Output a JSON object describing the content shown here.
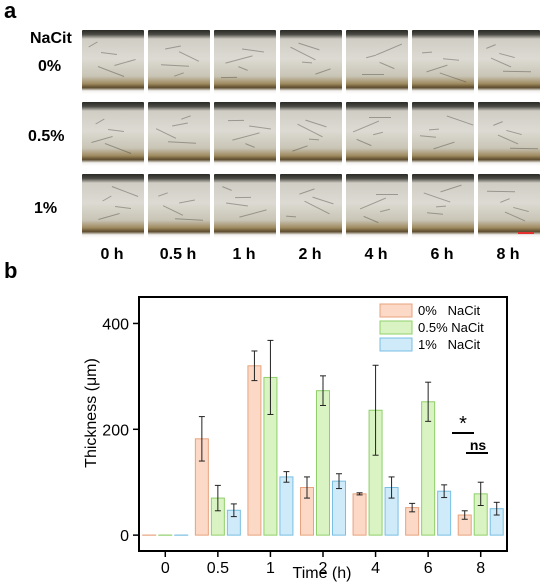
{
  "panels": {
    "a_letter": "a",
    "b_letter": "b"
  },
  "micrographs": {
    "header_label": "NaCit",
    "row_labels": [
      "0%",
      "0.5%",
      "1%"
    ],
    "col_labels": [
      "0 h",
      "0.5 h",
      "1 h",
      "2 h",
      "4 h",
      "6 h",
      "8 h"
    ],
    "scale_bar_color": "#e53030"
  },
  "chart_data": {
    "type": "bar",
    "xlabel": "Time (h)",
    "ylabel": "Thickness (μm)",
    "categories": [
      "0",
      "0.5",
      "1",
      "2",
      "4",
      "6",
      "8"
    ],
    "ylim": [
      -30,
      450
    ],
    "yticks": [
      0,
      200,
      400
    ],
    "grid": false,
    "legend_position": "top-right",
    "series": [
      {
        "name": "0%   NaCit",
        "fill": "#fbd9c6",
        "stroke": "#e8a27e",
        "values": [
          0,
          182,
          320,
          90,
          78,
          52,
          38
        ],
        "errors": [
          0,
          42,
          28,
          20,
          2,
          8,
          8
        ]
      },
      {
        "name": "0.5% NaCit",
        "fill": "#d9f4c2",
        "stroke": "#8fcf6a",
        "values": [
          0,
          70,
          298,
          273,
          236,
          252,
          78
        ],
        "errors": [
          0,
          24,
          70,
          28,
          85,
          37,
          22
        ]
      },
      {
        "name": "1%   NaCit",
        "fill": "#cfeaf8",
        "stroke": "#79bfe3",
        "values": [
          0,
          47,
          110,
          102,
          90,
          83,
          50
        ],
        "errors": [
          0,
          12,
          10,
          14,
          20,
          12,
          12
        ]
      }
    ],
    "annotations": [
      "*",
      "ns"
    ]
  }
}
